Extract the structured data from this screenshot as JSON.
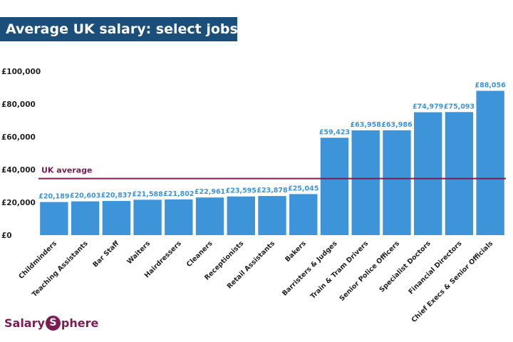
{
  "header": {
    "title": "Average UK salary: select jobs"
  },
  "brand": {
    "prefix": "Salary",
    "mark": "S",
    "suffix": "phere"
  },
  "colors": {
    "bar": "#3d94d8",
    "average_line": "#7b1d52",
    "title_bg": "#1b4f7a"
  },
  "chart_data": {
    "type": "bar",
    "title": "Average UK salary: select jobs",
    "xlabel": "",
    "ylabel": "",
    "ylim": [
      0,
      100000
    ],
    "yticks": [
      0,
      20000,
      40000,
      60000,
      80000,
      100000
    ],
    "ytick_labels": [
      "£0",
      "£20,000",
      "£40,000",
      "£60,000",
      "£80,000",
      "£100,000"
    ],
    "categories": [
      "Childminders",
      "Teaching Assistants",
      "Bar Staff",
      "Waiters",
      "Hairdressers",
      "Cleaners",
      "Receptionists",
      "Retail Assistants",
      "Bakers",
      "Barristers & Judges",
      "Train & Tram Drivers",
      "Senior Police Officers",
      "Specialist Doctors",
      "Financial Directors",
      "Chief Execs & Senior Officials"
    ],
    "values": [
      20189,
      20603,
      20837,
      21588,
      21802,
      22961,
      23595,
      23878,
      25045,
      59423,
      63958,
      63986,
      74979,
      75093,
      88056
    ],
    "data_labels": [
      "£20,189",
      "£20,603",
      "£20,837",
      "£21,588",
      "£21,802",
      "£22,961",
      "£23,595",
      "£23,878",
      "£25,045",
      "£59,423",
      "£63,958",
      "£63,986",
      "£74,979",
      "£75,093",
      "£88,056"
    ],
    "reference_line": {
      "label": "UK average",
      "value": 34500
    }
  }
}
